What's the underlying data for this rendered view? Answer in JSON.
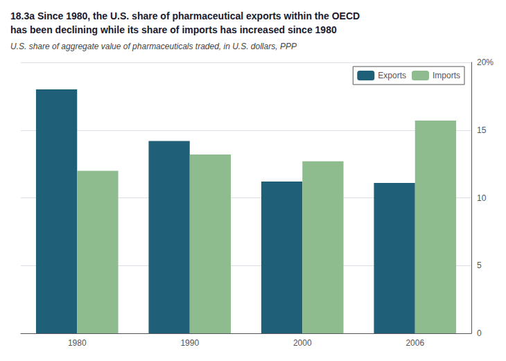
{
  "chart_data": {
    "type": "bar",
    "title": "18.3a Since 1980, the U.S. share of pharmaceutical exports within the OECD\nhas been declining while its share of imports has increased since 1980",
    "subtitle": "U.S. share of aggregate value of pharmaceuticals traded, in U.S. dollars, PPP",
    "categories": [
      "1980",
      "1990",
      "2000",
      "2006"
    ],
    "series": [
      {
        "name": "Exports",
        "color": "#1f5f78",
        "values": [
          18.0,
          14.2,
          11.2,
          11.1
        ]
      },
      {
        "name": "Imports",
        "color": "#8fbc8f",
        "values": [
          12.0,
          13.2,
          12.7,
          15.7
        ]
      }
    ],
    "ylim": [
      0,
      20
    ],
    "yticks": [
      0,
      5,
      10,
      15,
      {
        "value": 20,
        "label": "20%"
      }
    ],
    "grid": true,
    "legend": "upper right"
  }
}
